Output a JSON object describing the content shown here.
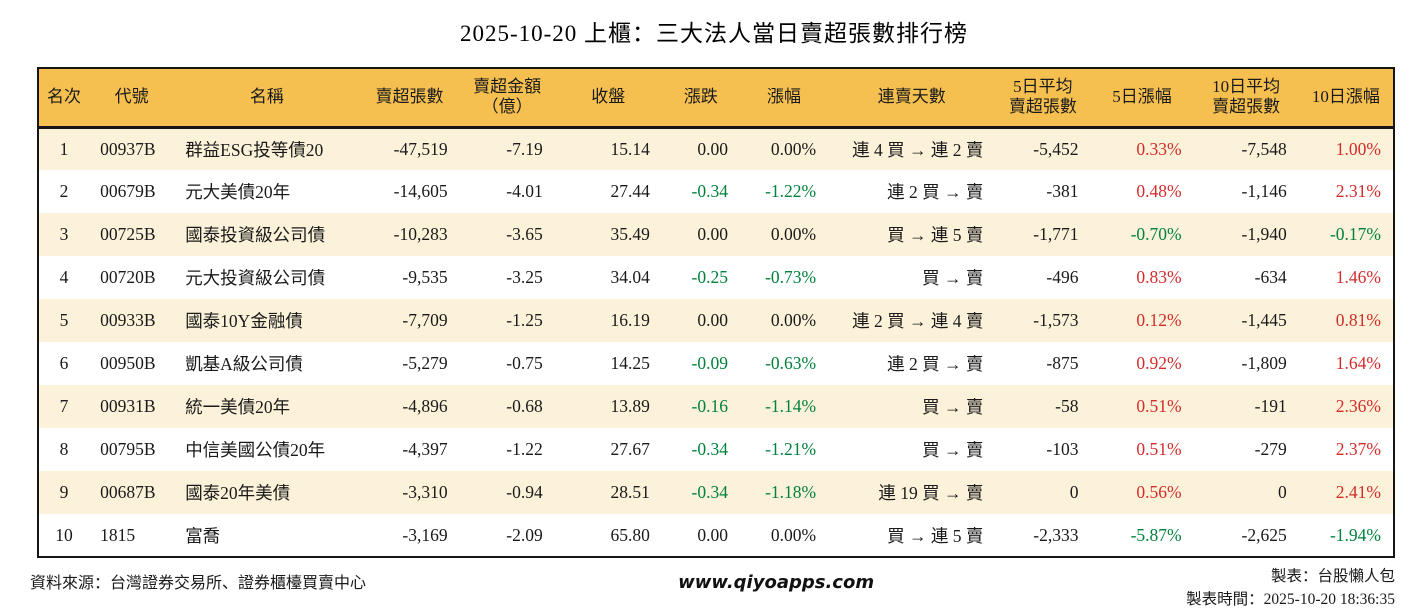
{
  "title": "2025-10-20 上櫃：三大法人當日賣超張數排行榜",
  "colors": {
    "header_bg": "#F6C050",
    "row_stripe_bg": "#FBF2D9",
    "row_plain_bg": "#FFFFFF",
    "positive_red": "#D42B2B",
    "negative_green": "#00813C",
    "border_black": "#151515"
  },
  "table": {
    "columns": [
      {
        "label": "名次",
        "align": "center"
      },
      {
        "label": "代號",
        "align": "left"
      },
      {
        "label": "名稱",
        "align": "left"
      },
      {
        "label": "賣超張數",
        "align": "right"
      },
      {
        "label": "賣超金額\n（億）",
        "align": "right"
      },
      {
        "label": "收盤",
        "align": "right"
      },
      {
        "label": "漲跌",
        "align": "right"
      },
      {
        "label": "漲幅",
        "align": "right"
      },
      {
        "label": "連賣天數",
        "align": "right"
      },
      {
        "label": "5日平均\n賣超張數",
        "align": "right"
      },
      {
        "label": "5日漲幅",
        "align": "right"
      },
      {
        "label": "10日平均\n賣超張數",
        "align": "right"
      },
      {
        "label": "10日漲幅",
        "align": "right"
      }
    ],
    "rows": [
      [
        [
          "1",
          "k"
        ],
        [
          "00937B",
          "k"
        ],
        [
          "群益ESG投等債20",
          "k"
        ],
        [
          "-47,519",
          "k"
        ],
        [
          "-7.19",
          "k"
        ],
        [
          "15.14",
          "k"
        ],
        [
          "0.00",
          "k"
        ],
        [
          "0.00%",
          "k"
        ],
        [
          "連 4 買 → 連 2 賣",
          "k"
        ],
        [
          "-5,452",
          "k"
        ],
        [
          "0.33%",
          "r"
        ],
        [
          "-7,548",
          "k"
        ],
        [
          "1.00%",
          "r"
        ]
      ],
      [
        [
          "2",
          "k"
        ],
        [
          "00679B",
          "k"
        ],
        [
          "元大美債20年",
          "k"
        ],
        [
          "-14,605",
          "k"
        ],
        [
          "-4.01",
          "k"
        ],
        [
          "27.44",
          "k"
        ],
        [
          "-0.34",
          "g"
        ],
        [
          "-1.22%",
          "g"
        ],
        [
          "連 2 買 → 賣",
          "k"
        ],
        [
          "-381",
          "k"
        ],
        [
          "0.48%",
          "r"
        ],
        [
          "-1,146",
          "k"
        ],
        [
          "2.31%",
          "r"
        ]
      ],
      [
        [
          "3",
          "k"
        ],
        [
          "00725B",
          "k"
        ],
        [
          "國泰投資級公司債",
          "k"
        ],
        [
          "-10,283",
          "k"
        ],
        [
          "-3.65",
          "k"
        ],
        [
          "35.49",
          "k"
        ],
        [
          "0.00",
          "k"
        ],
        [
          "0.00%",
          "k"
        ],
        [
          "買 → 連 5 賣",
          "k"
        ],
        [
          "-1,771",
          "k"
        ],
        [
          "-0.70%",
          "g"
        ],
        [
          "-1,940",
          "k"
        ],
        [
          "-0.17%",
          "g"
        ]
      ],
      [
        [
          "4",
          "k"
        ],
        [
          "00720B",
          "k"
        ],
        [
          "元大投資級公司債",
          "k"
        ],
        [
          "-9,535",
          "k"
        ],
        [
          "-3.25",
          "k"
        ],
        [
          "34.04",
          "k"
        ],
        [
          "-0.25",
          "g"
        ],
        [
          "-0.73%",
          "g"
        ],
        [
          "買 → 賣",
          "k"
        ],
        [
          "-496",
          "k"
        ],
        [
          "0.83%",
          "r"
        ],
        [
          "-634",
          "k"
        ],
        [
          "1.46%",
          "r"
        ]
      ],
      [
        [
          "5",
          "k"
        ],
        [
          "00933B",
          "k"
        ],
        [
          "國泰10Y金融債",
          "k"
        ],
        [
          "-7,709",
          "k"
        ],
        [
          "-1.25",
          "k"
        ],
        [
          "16.19",
          "k"
        ],
        [
          "0.00",
          "k"
        ],
        [
          "0.00%",
          "k"
        ],
        [
          "連 2 買 → 連 4 賣",
          "k"
        ],
        [
          "-1,573",
          "k"
        ],
        [
          "0.12%",
          "r"
        ],
        [
          "-1,445",
          "k"
        ],
        [
          "0.81%",
          "r"
        ]
      ],
      [
        [
          "6",
          "k"
        ],
        [
          "00950B",
          "k"
        ],
        [
          "凱基A級公司債",
          "k"
        ],
        [
          "-5,279",
          "k"
        ],
        [
          "-0.75",
          "k"
        ],
        [
          "14.25",
          "k"
        ],
        [
          "-0.09",
          "g"
        ],
        [
          "-0.63%",
          "g"
        ],
        [
          "連 2 買 → 賣",
          "k"
        ],
        [
          "-875",
          "k"
        ],
        [
          "0.92%",
          "r"
        ],
        [
          "-1,809",
          "k"
        ],
        [
          "1.64%",
          "r"
        ]
      ],
      [
        [
          "7",
          "k"
        ],
        [
          "00931B",
          "k"
        ],
        [
          "統一美債20年",
          "k"
        ],
        [
          "-4,896",
          "k"
        ],
        [
          "-0.68",
          "k"
        ],
        [
          "13.89",
          "k"
        ],
        [
          "-0.16",
          "g"
        ],
        [
          "-1.14%",
          "g"
        ],
        [
          "買 → 賣",
          "k"
        ],
        [
          "-58",
          "k"
        ],
        [
          "0.51%",
          "r"
        ],
        [
          "-191",
          "k"
        ],
        [
          "2.36%",
          "r"
        ]
      ],
      [
        [
          "8",
          "k"
        ],
        [
          "00795B",
          "k"
        ],
        [
          "中信美國公債20年",
          "k"
        ],
        [
          "-4,397",
          "k"
        ],
        [
          "-1.22",
          "k"
        ],
        [
          "27.67",
          "k"
        ],
        [
          "-0.34",
          "g"
        ],
        [
          "-1.21%",
          "g"
        ],
        [
          "買 → 賣",
          "k"
        ],
        [
          "-103",
          "k"
        ],
        [
          "0.51%",
          "r"
        ],
        [
          "-279",
          "k"
        ],
        [
          "2.37%",
          "r"
        ]
      ],
      [
        [
          "9",
          "k"
        ],
        [
          "00687B",
          "k"
        ],
        [
          "國泰20年美債",
          "k"
        ],
        [
          "-3,310",
          "k"
        ],
        [
          "-0.94",
          "k"
        ],
        [
          "28.51",
          "k"
        ],
        [
          "-0.34",
          "g"
        ],
        [
          "-1.18%",
          "g"
        ],
        [
          "連 19 買 → 賣",
          "k"
        ],
        [
          "0",
          "k"
        ],
        [
          "0.56%",
          "r"
        ],
        [
          "0",
          "k"
        ],
        [
          "2.41%",
          "r"
        ]
      ],
      [
        [
          "10",
          "k"
        ],
        [
          "1815",
          "k"
        ],
        [
          "富喬",
          "k"
        ],
        [
          "-3,169",
          "k"
        ],
        [
          "-2.09",
          "k"
        ],
        [
          "65.80",
          "k"
        ],
        [
          "0.00",
          "k"
        ],
        [
          "0.00%",
          "k"
        ],
        [
          "買 → 連 5 賣",
          "k"
        ],
        [
          "-2,333",
          "k"
        ],
        [
          "-5.87%",
          "g"
        ],
        [
          "-2,625",
          "k"
        ],
        [
          "-1.94%",
          "g"
        ]
      ]
    ]
  },
  "footer": {
    "source": "資料來源：台灣證券交易所、證券櫃檯買賣中心",
    "website": "www.qiyoapps.com",
    "maker": "製表：台股懶人包",
    "timestamp": "製表時間：2025-10-20 18:36:35"
  }
}
